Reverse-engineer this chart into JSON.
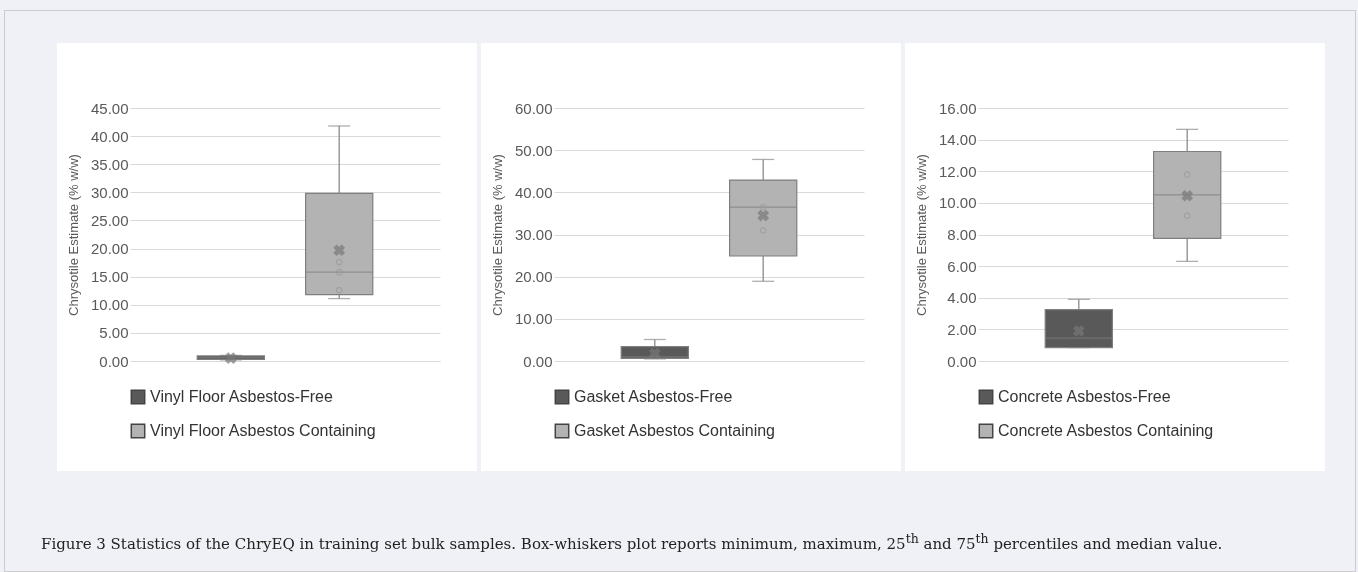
{
  "chart_data": [
    {
      "type": "box",
      "categories": [
        null,
        null
      ],
      "ylabel": "Chrysotile Estimate (% w/w)",
      "ylim": [
        0,
        45
      ],
      "yticks": [
        {
          "value": 0,
          "label": "0.00"
        },
        {
          "value": 5,
          "label": "5.00"
        },
        {
          "value": 10,
          "label": "10.00"
        },
        {
          "value": 15,
          "label": "15.00"
        },
        {
          "value": 20,
          "label": "20.00"
        },
        {
          "value": 25,
          "label": "25.00"
        },
        {
          "value": 30,
          "label": "30.00"
        },
        {
          "value": 35,
          "label": "35.00"
        },
        {
          "value": 40,
          "label": "40.00"
        },
        {
          "value": 45,
          "label": "45.00"
        }
      ],
      "grid": "y",
      "legend": "bottom",
      "tick_labels": "y",
      "marker": "circle",
      "annotations": [
        "Figure 3 Statistics of the ChryEQ in training set bulk samples. Box-whiskers plot reports minimum, maximum, 25$^{th}$ and 75$^{th}$ percentiles and median value."
      ],
      "series": [
        {
          "name": "Vinyl Floor Asbestos-Free",
          "color": "#595959",
          "boxes": [
            {
              "low": 0.2,
              "q1": 0.3,
              "median": 0.6,
              "q3": 0.9,
              "high": 1.0,
              "mean": 0.5
            },
            null
          ]
        },
        {
          "name": "Vinyl Floor Asbestos Containing",
          "color": "#b3b3b3",
          "boxes": [
            null,
            {
              "low": 11.1,
              "q1": 11.8,
              "median": 15.8,
              "q3": 29.8,
              "high": 41.8,
              "mean": 19.7
            }
          ]
        },
        {
          "type": "scatter",
          "color": "#999999",
          "values": [
            null,
            17.6
          ]
        },
        {
          "type": "scatter",
          "color": "#999999",
          "values": [
            null,
            15.8
          ]
        },
        {
          "type": "scatter",
          "color": "#999999",
          "values": [
            null,
            12.6
          ]
        }
      ]
    },
    {
      "type": "box",
      "categories": [
        null,
        null
      ],
      "ylabel": "Chrysotile Estimate (% w/w)",
      "ylim": [
        0,
        60
      ],
      "yticks": [
        {
          "value": 0,
          "label": "0.00"
        },
        {
          "value": 10,
          "label": "10.00"
        },
        {
          "value": 20,
          "label": "20.00"
        },
        {
          "value": 30,
          "label": "30.00"
        },
        {
          "value": 40,
          "label": "40.00"
        },
        {
          "value": 50,
          "label": "50.00"
        },
        {
          "value": 60,
          "label": "60.00"
        }
      ],
      "grid": "y",
      "legend": "bottom",
      "tick_labels": "y",
      "marker": "circle",
      "series": [
        {
          "name": "Gasket Asbestos-Free",
          "color": "#595959",
          "boxes": [
            {
              "low": 0.5,
              "q1": 0.6,
              "median": 1.0,
              "q3": 3.4,
              "high": 5.1,
              "mean": 1.8
            },
            null
          ]
        },
        {
          "name": "Gasket Asbestos Containing",
          "color": "#b3b3b3",
          "boxes": [
            null,
            {
              "low": 18.9,
              "q1": 24.9,
              "median": 36.5,
              "q3": 42.9,
              "high": 47.8,
              "mean": 34.5
            }
          ]
        },
        {
          "type": "scatter",
          "color": "#999999",
          "values": [
            null,
            36.5
          ]
        },
        {
          "type": "scatter",
          "color": "#999999",
          "values": [
            null,
            31.0
          ]
        }
      ]
    },
    {
      "type": "box",
      "categories": [
        null,
        null
      ],
      "ylabel": "Chrysotile Estimate (% w/w)",
      "ylim": [
        0,
        16
      ],
      "yticks": [
        {
          "value": 0,
          "label": "0.00"
        },
        {
          "value": 2,
          "label": "2.00"
        },
        {
          "value": 4,
          "label": "4.00"
        },
        {
          "value": 6,
          "label": "6.00"
        },
        {
          "value": 8,
          "label": "8.00"
        },
        {
          "value": 10,
          "label": "10.00"
        },
        {
          "value": 12,
          "label": "12.00"
        },
        {
          "value": 14,
          "label": "14.00"
        },
        {
          "value": 16,
          "label": "16.00"
        }
      ],
      "grid": "y",
      "legend": "bottom",
      "tick_labels": "y",
      "marker": "circle",
      "series": [
        {
          "name": "Concrete Asbestos-Free",
          "color": "#595959",
          "boxes": [
            {
              "low": 0.85,
              "q1": 0.85,
              "median": 1.45,
              "q3": 3.25,
              "high": 3.9,
              "mean": 1.9
            },
            null
          ]
        },
        {
          "name": "Concrete Asbestos Containing",
          "color": "#b3b3b3",
          "boxes": [
            null,
            {
              "low": 6.3,
              "q1": 7.75,
              "median": 10.5,
              "q3": 13.25,
              "high": 14.65,
              "mean": 10.45
            }
          ]
        },
        {
          "type": "scatter",
          "color": "#999999",
          "values": [
            null,
            11.8
          ]
        },
        {
          "type": "scatter",
          "color": "#999999",
          "values": [
            null,
            9.2
          ]
        }
      ]
    }
  ]
}
